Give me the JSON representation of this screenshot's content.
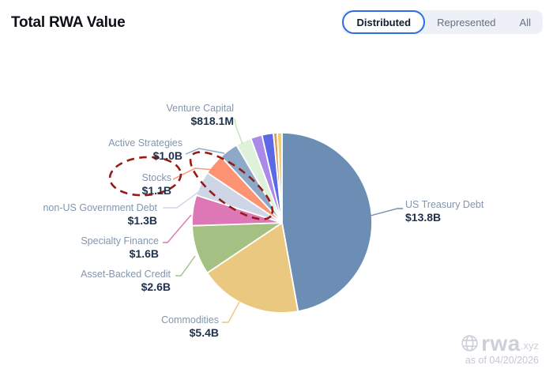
{
  "header": {
    "title": "Total RWA Value",
    "tabs": [
      {
        "label": "Distributed",
        "active": true
      },
      {
        "label": "Represented",
        "active": false
      },
      {
        "label": "All",
        "active": false
      }
    ]
  },
  "chart_data": {
    "type": "pie",
    "title": "Total RWA Value",
    "unit": "USD",
    "direction": "clockwise",
    "start_angle_deg": 0,
    "segments": [
      {
        "label": "US Treasury Debt",
        "value_label": "$13.8B",
        "value_billions": 13.8,
        "color": "#6c8db4"
      },
      {
        "label": "Commodities",
        "value_label": "$5.4B",
        "value_billions": 5.4,
        "color": "#ebc87f"
      },
      {
        "label": "Asset-Backed Credit",
        "value_label": "$2.6B",
        "value_billions": 2.6,
        "color": "#a4c183"
      },
      {
        "label": "Specialty Finance",
        "value_label": "$1.6B",
        "value_billions": 1.6,
        "color": "#de77b5"
      },
      {
        "label": "non-US Government Debt",
        "value_label": "$1.3B",
        "value_billions": 1.3,
        "color": "#cdd5e7"
      },
      {
        "label": "Stocks",
        "value_label": "$1.1B",
        "value_billions": 1.1,
        "color": "#fc9372",
        "annotated": true
      },
      {
        "label": "Active Strategies",
        "value_label": "$1.0B",
        "value_billions": 1.0,
        "color": "#8ea8c8"
      },
      {
        "label": "Venture Capital",
        "value_label": "$818.1M",
        "value_billions": 0.8181,
        "color": "#def2da"
      },
      {
        "label": "",
        "value_billions": 0.6,
        "color": "#a98ae8"
      },
      {
        "label": "",
        "value_billions": 0.6,
        "color": "#5c69e4"
      },
      {
        "label": "",
        "value_billions": 0.2,
        "color": "#dd9c60"
      },
      {
        "label": "",
        "value_billions": 0.25,
        "color": "#f0cf66"
      }
    ],
    "annotation": {
      "type": "hand-drawn-dashed-circles",
      "color": "#961b15",
      "targets": [
        "Stocks label",
        "Stocks slice"
      ]
    }
  },
  "watermark": {
    "brand": "rwa",
    "brand_suffix": ".xyz",
    "as_of": "as of 04/20/2026"
  }
}
